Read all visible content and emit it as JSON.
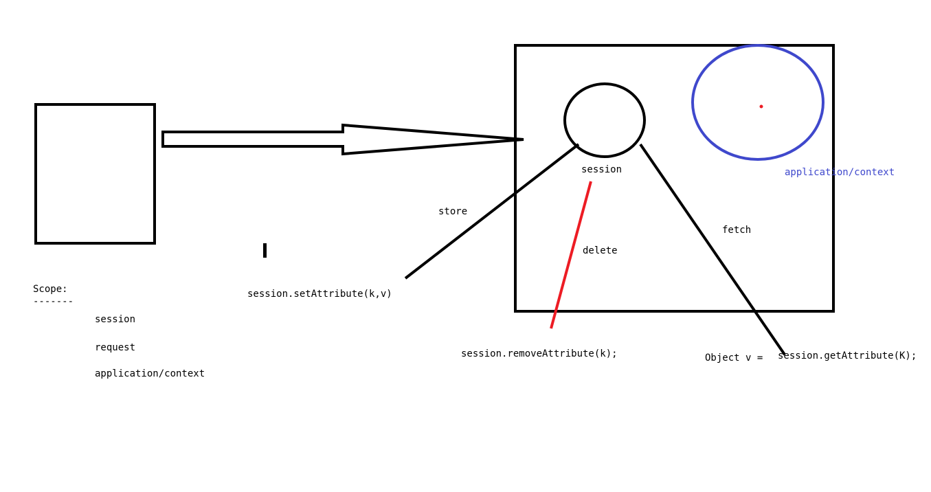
{
  "labels": {
    "session": "session",
    "application_context": "application/context",
    "store": "store",
    "fetch": "fetch",
    "delete": "delete",
    "set_attribute": "session.setAttribute(k,v)",
    "remove_attribute": "session.removeAttribute(k);",
    "object_v": "Object v =",
    "get_attribute": "session.getAttribute(K);"
  },
  "scope": {
    "title": "Scope:",
    "underline": "-------",
    "items": [
      "session",
      "request",
      "application/context"
    ]
  },
  "colors": {
    "stroke": "#000000",
    "delete_line": "#ed1c24",
    "application_circle": "#3f48cc",
    "dot": "#ed1c24"
  }
}
